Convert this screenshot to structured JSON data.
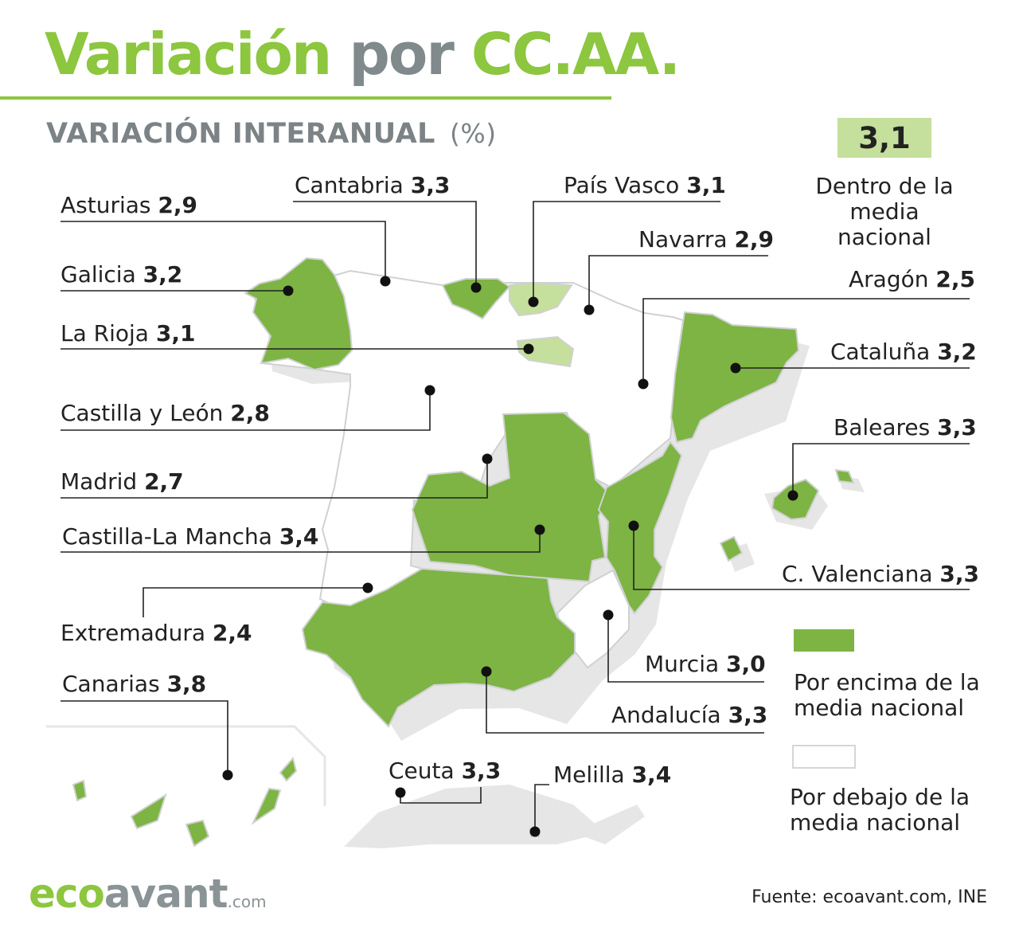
{
  "title": {
    "part1": "Variación",
    "part2": "por",
    "part3": "CC.AA."
  },
  "subtitle": {
    "text": "VARIACIÓN INTERANUAL",
    "unit": "(%)"
  },
  "regions": [
    {
      "name": "Asturias",
      "value": "2,9"
    },
    {
      "name": "Cantabria",
      "value": "3,3"
    },
    {
      "name": "País Vasco",
      "value": "3,1"
    },
    {
      "name": "Navarra",
      "value": "2,9"
    },
    {
      "name": "Galicia",
      "value": "3,2"
    },
    {
      "name": "Aragón",
      "value": "2,5"
    },
    {
      "name": "La Rioja",
      "value": "3,1"
    },
    {
      "name": "Cataluña",
      "value": "3,2"
    },
    {
      "name": "Castilla y León",
      "value": "2,8"
    },
    {
      "name": "Baleares",
      "value": "3,3"
    },
    {
      "name": "Madrid",
      "value": "2,7"
    },
    {
      "name": "Castilla-La Mancha",
      "value": "3,4"
    },
    {
      "name": "C. Valenciana",
      "value": "3,3"
    },
    {
      "name": "Extremadura",
      "value": "2,4"
    },
    {
      "name": "Murcia",
      "value": "3,0"
    },
    {
      "name": "Canarias",
      "value": "3,8"
    },
    {
      "name": "Andalucía",
      "value": "3,3"
    },
    {
      "name": "Ceuta",
      "value": "3,3"
    },
    {
      "name": "Melilla",
      "value": "3,4"
    }
  ],
  "legend": {
    "national_value": "3,1",
    "within": "Dentro de la media nacional",
    "above": "Por encima de la media nacional",
    "below": "Por debajo de la media nacional"
  },
  "colors": {
    "above": "#7db443",
    "within": "#c5df9c",
    "below": "#ffffff",
    "accent": "#8dc63f",
    "gray": "#808a8d"
  },
  "source": "Fuente: ecoavant.com, INE",
  "logo": {
    "part1": "eco",
    "part2": "avant",
    "part3": ".com"
  }
}
